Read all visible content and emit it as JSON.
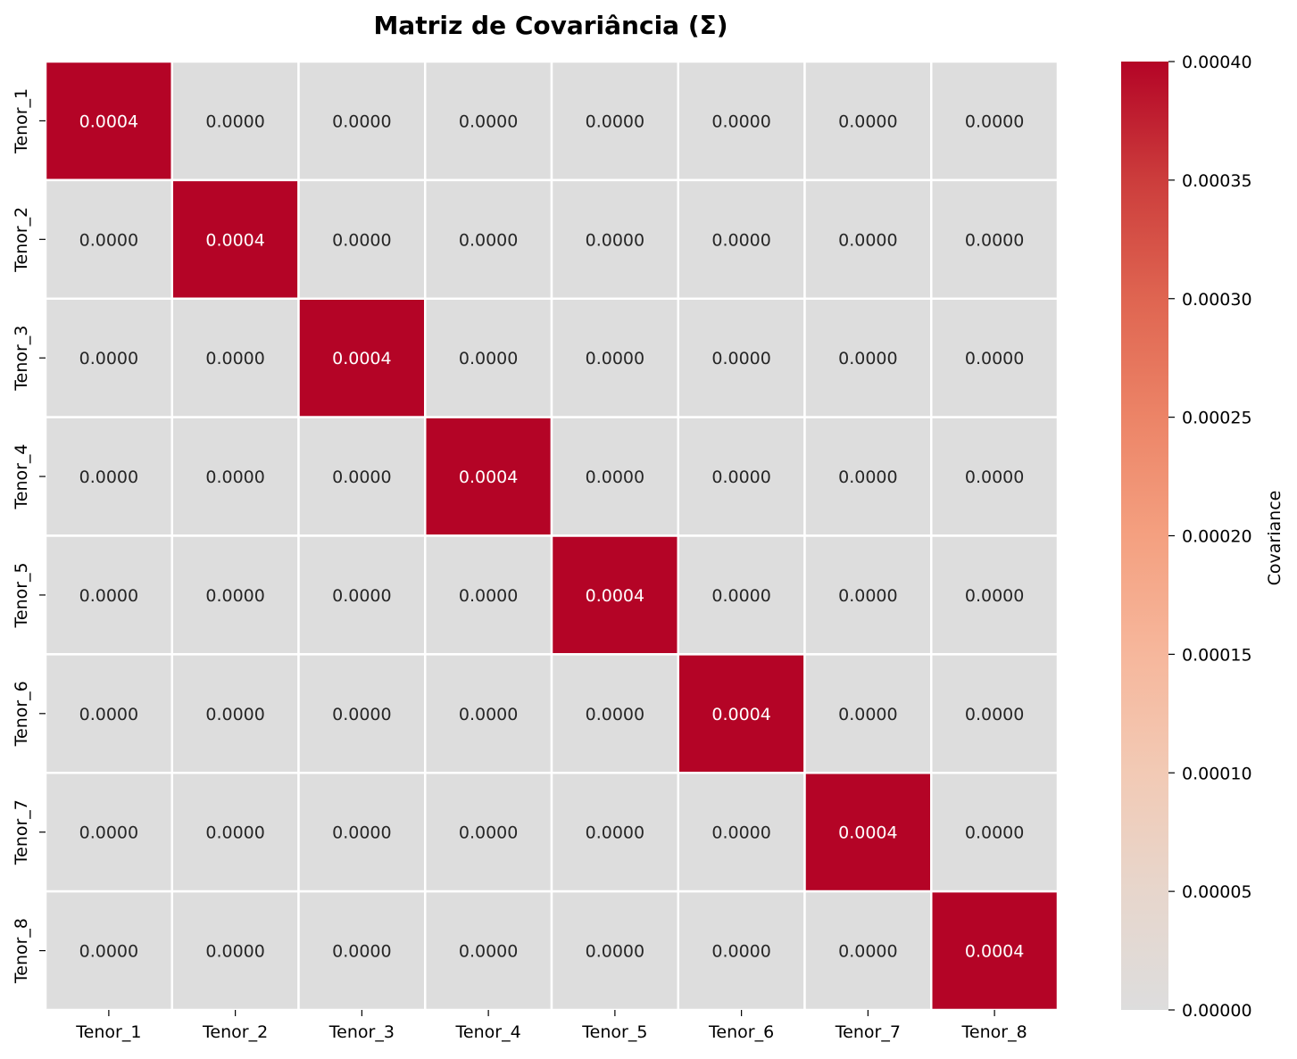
{
  "chart_data": {
    "type": "heatmap",
    "title": "Matriz de Covariância (Σ)",
    "row_labels": [
      "Tenor_1",
      "Tenor_2",
      "Tenor_3",
      "Tenor_4",
      "Tenor_5",
      "Tenor_6",
      "Tenor_7",
      "Tenor_8"
    ],
    "col_labels": [
      "Tenor_1",
      "Tenor_2",
      "Tenor_3",
      "Tenor_4",
      "Tenor_5",
      "Tenor_6",
      "Tenor_7",
      "Tenor_8"
    ],
    "values": [
      [
        0.0004,
        0,
        0,
        0,
        0,
        0,
        0,
        0
      ],
      [
        0,
        0.0004,
        0,
        0,
        0,
        0,
        0,
        0
      ],
      [
        0,
        0,
        0.0004,
        0,
        0,
        0,
        0,
        0
      ],
      [
        0,
        0,
        0,
        0.0004,
        0,
        0,
        0,
        0
      ],
      [
        0,
        0,
        0,
        0,
        0.0004,
        0,
        0,
        0
      ],
      [
        0,
        0,
        0,
        0,
        0,
        0.0004,
        0,
        0
      ],
      [
        0,
        0,
        0,
        0,
        0,
        0,
        0.0004,
        0
      ],
      [
        0,
        0,
        0,
        0,
        0,
        0,
        0,
        0.0004
      ]
    ],
    "annotations": [
      [
        "0.0004",
        "0.0000",
        "0.0000",
        "0.0000",
        "0.0000",
        "0.0000",
        "0.0000",
        "0.0000"
      ],
      [
        "0.0000",
        "0.0004",
        "0.0000",
        "0.0000",
        "0.0000",
        "0.0000",
        "0.0000",
        "0.0000"
      ],
      [
        "0.0000",
        "0.0000",
        "0.0004",
        "0.0000",
        "0.0000",
        "0.0000",
        "0.0000",
        "0.0000"
      ],
      [
        "0.0000",
        "0.0000",
        "0.0000",
        "0.0004",
        "0.0000",
        "0.0000",
        "0.0000",
        "0.0000"
      ],
      [
        "0.0000",
        "0.0000",
        "0.0000",
        "0.0000",
        "0.0004",
        "0.0000",
        "0.0000",
        "0.0000"
      ],
      [
        "0.0000",
        "0.0000",
        "0.0000",
        "0.0000",
        "0.0000",
        "0.0004",
        "0.0000",
        "0.0000"
      ],
      [
        "0.0000",
        "0.0000",
        "0.0000",
        "0.0000",
        "0.0000",
        "0.0000",
        "0.0004",
        "0.0000"
      ],
      [
        "0.0000",
        "0.0000",
        "0.0000",
        "0.0000",
        "0.0000",
        "0.0000",
        "0.0000",
        "0.0004"
      ]
    ],
    "colorbar": {
      "label": "Covariance",
      "range": [
        0,
        0.0004
      ],
      "ticks": [
        0,
        5e-05,
        0.0001,
        0.00015,
        0.0002,
        0.00025,
        0.0003,
        0.00035,
        0.0004
      ],
      "tick_labels": [
        "0.00000",
        "0.00005",
        "0.00010",
        "0.00015",
        "0.00020",
        "0.00025",
        "0.00030",
        "0.00035",
        "0.00040"
      ]
    },
    "colormap": "coolwarm (centered at 0)",
    "colors": {
      "low": "#dddddd",
      "high": "#b40426",
      "cell_border": "#ffffff",
      "text_dark": "#262626",
      "text_light": "#ffffff"
    }
  }
}
